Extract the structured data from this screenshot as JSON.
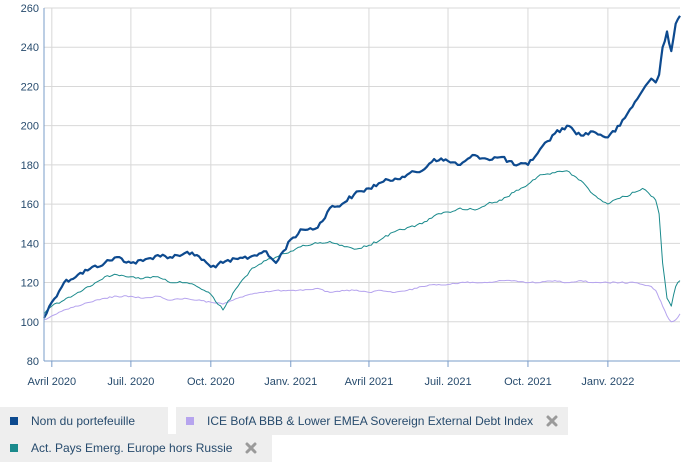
{
  "chart_data": {
    "type": "line",
    "ylim": [
      80,
      260
    ],
    "yticks": [
      80,
      100,
      120,
      140,
      160,
      180,
      200,
      220,
      240,
      260
    ],
    "grid": true,
    "legend_position": "bottom",
    "xtick_labels": [
      "Avril 2020",
      "Juil. 2020",
      "Oct. 2020",
      "Janv. 2021",
      "Avril 2021",
      "Juil. 2021",
      "Oct. 2021",
      "Janv. 2022"
    ],
    "xtick_dates": [
      "2020-04-01",
      "2020-07-01",
      "2020-10-01",
      "2021-01-01",
      "2021-04-01",
      "2021-07-01",
      "2021-10-01",
      "2022-01-01"
    ],
    "x": [
      "2020-03-23",
      "2020-04-01",
      "2020-04-15",
      "2020-05-01",
      "2020-05-15",
      "2020-06-01",
      "2020-06-15",
      "2020-07-01",
      "2020-07-15",
      "2020-08-01",
      "2020-08-15",
      "2020-09-01",
      "2020-09-15",
      "2020-10-01",
      "2020-10-15",
      "2020-11-01",
      "2020-11-15",
      "2020-12-01",
      "2020-12-15",
      "2021-01-01",
      "2021-01-15",
      "2021-02-01",
      "2021-02-15",
      "2021-03-01",
      "2021-03-15",
      "2021-04-01",
      "2021-04-15",
      "2021-05-01",
      "2021-05-15",
      "2021-06-01",
      "2021-06-15",
      "2021-07-01",
      "2021-07-15",
      "2021-08-01",
      "2021-08-15",
      "2021-09-01",
      "2021-09-15",
      "2021-10-01",
      "2021-10-15",
      "2021-11-01",
      "2021-11-15",
      "2021-12-01",
      "2021-12-15",
      "2022-01-01",
      "2022-01-15",
      "2022-02-01",
      "2022-02-10",
      "2022-02-20",
      "2022-02-25",
      "2022-03-01",
      "2022-03-05",
      "2022-03-10",
      "2022-03-15",
      "2022-03-20",
      "2022-03-25"
    ],
    "series": [
      {
        "name": "Nom du portefeuille",
        "color": "#0d4a8f",
        "values": [
          102,
          110,
          120,
          124,
          127,
          130,
          133,
          130,
          131,
          134,
          133,
          135,
          134,
          128,
          130,
          132,
          133,
          136,
          130,
          142,
          147,
          148,
          158,
          160,
          165,
          168,
          171,
          173,
          175,
          177,
          183,
          182,
          180,
          185,
          183,
          184,
          180,
          180,
          188,
          196,
          200,
          195,
          197,
          194,
          200,
          212,
          218,
          224,
          222,
          226,
          240,
          248,
          238,
          252,
          256
        ]
      },
      {
        "name": "ICE BofA BBB & Lower EMEA Sovereign External Debt Index",
        "color": "#b6a4ee",
        "values": [
          101,
          103,
          106,
          108,
          110,
          112,
          113,
          113,
          112,
          113,
          111,
          112,
          111,
          110,
          109,
          112,
          114,
          115,
          116,
          116,
          116,
          117,
          115,
          116,
          116,
          115,
          116,
          115,
          116,
          118,
          119,
          119,
          120,
          120,
          120,
          121,
          121,
          120,
          120,
          121,
          120,
          121,
          120,
          120,
          120,
          120,
          119,
          118,
          116,
          112,
          108,
          103,
          100,
          101,
          104
        ]
      },
      {
        "name": "Act. Pays Emerg. Europe hors Russie",
        "color": "#1a8a8c",
        "values": [
          104,
          108,
          111,
          115,
          118,
          123,
          124,
          123,
          122,
          123,
          120,
          120,
          118,
          114,
          106,
          118,
          126,
          131,
          133,
          136,
          139,
          140,
          141,
          139,
          137,
          139,
          142,
          146,
          148,
          150,
          154,
          156,
          158,
          157,
          160,
          162,
          166,
          170,
          175,
          176,
          177,
          172,
          165,
          160,
          163,
          166,
          168,
          164,
          162,
          155,
          130,
          112,
          108,
          118,
          121
        ]
      }
    ]
  },
  "legend": {
    "items": [
      {
        "label": "Nom du portefeuille",
        "color": "#0d4a8f"
      },
      {
        "label": "ICE BofA BBB & Lower EMEA Sovereign External Debt Index",
        "color": "#b6a4ee"
      },
      {
        "label": "Act. Pays Emerg. Europe hors Russie",
        "color": "#1a8a8c"
      }
    ]
  }
}
